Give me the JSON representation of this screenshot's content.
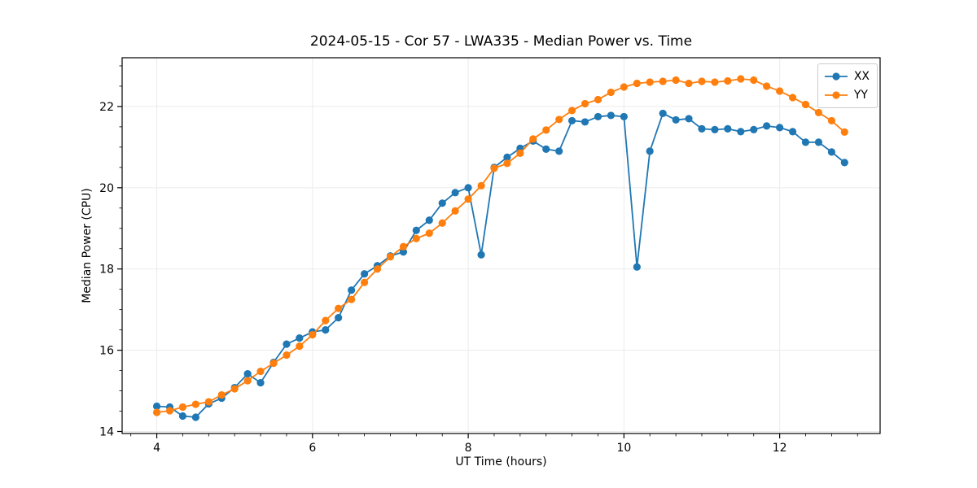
{
  "chart_data": {
    "type": "line",
    "title": "2024-05-15 - Cor 57 - LWA335 - Median Power vs. Time",
    "xlabel": "UT Time (hours)",
    "ylabel": "Median Power (CPU)",
    "xlim": [
      3.555,
      13.29
    ],
    "ylim": [
      13.95,
      23.2
    ],
    "xticks": [
      4,
      6,
      8,
      10,
      12
    ],
    "yticks": [
      14,
      16,
      18,
      20,
      22
    ],
    "x_minor_step": 0.3333,
    "y_minor_step": 0.5,
    "grid": "major-only",
    "grid_color": "#ebebeb",
    "legend_position": "upper right",
    "x": [
      4.0,
      4.167,
      4.333,
      4.5,
      4.667,
      4.833,
      5.0,
      5.167,
      5.333,
      5.5,
      5.667,
      5.833,
      6.0,
      6.167,
      6.333,
      6.5,
      6.667,
      6.833,
      7.0,
      7.167,
      7.333,
      7.5,
      7.667,
      7.833,
      8.0,
      8.167,
      8.333,
      8.5,
      8.667,
      8.833,
      9.0,
      9.167,
      9.333,
      9.5,
      9.667,
      9.833,
      10.0,
      10.167,
      10.333,
      10.5,
      10.667,
      10.833,
      11.0,
      11.167,
      11.333,
      11.5,
      11.667,
      11.833,
      12.0,
      12.167,
      12.333,
      12.5,
      12.667,
      12.833
    ],
    "series": [
      {
        "name": "XX",
        "color": "#1f77b4",
        "values": [
          14.62,
          14.6,
          14.38,
          14.35,
          14.68,
          14.82,
          15.08,
          15.42,
          15.2,
          15.7,
          16.15,
          16.3,
          16.45,
          16.5,
          16.8,
          17.48,
          17.88,
          18.08,
          18.32,
          18.42,
          18.95,
          19.2,
          19.62,
          19.88,
          20.0,
          18.35,
          20.5,
          20.75,
          20.97,
          21.15,
          20.95,
          20.9,
          21.65,
          21.62,
          21.75,
          21.78,
          21.75,
          18.05,
          20.9,
          21.83,
          21.67,
          21.7,
          21.45,
          21.43,
          21.45,
          21.38,
          21.43,
          21.52,
          21.48,
          21.38,
          21.12,
          21.12,
          20.88,
          20.62
        ]
      },
      {
        "name": "YY",
        "color": "#ff7f0e",
        "values": [
          14.47,
          14.51,
          14.6,
          14.67,
          14.73,
          14.9,
          15.05,
          15.25,
          15.48,
          15.68,
          15.88,
          16.1,
          16.38,
          16.73,
          17.03,
          17.25,
          17.67,
          18.0,
          18.3,
          18.55,
          18.75,
          18.88,
          19.13,
          19.43,
          19.72,
          20.05,
          20.48,
          20.6,
          20.85,
          21.2,
          21.42,
          21.68,
          21.9,
          22.07,
          22.17,
          22.35,
          22.48,
          22.57,
          22.6,
          22.62,
          22.65,
          22.57,
          22.62,
          22.6,
          22.63,
          22.68,
          22.65,
          22.5,
          22.38,
          22.22,
          22.05,
          21.85,
          21.65,
          21.37
        ]
      }
    ]
  }
}
